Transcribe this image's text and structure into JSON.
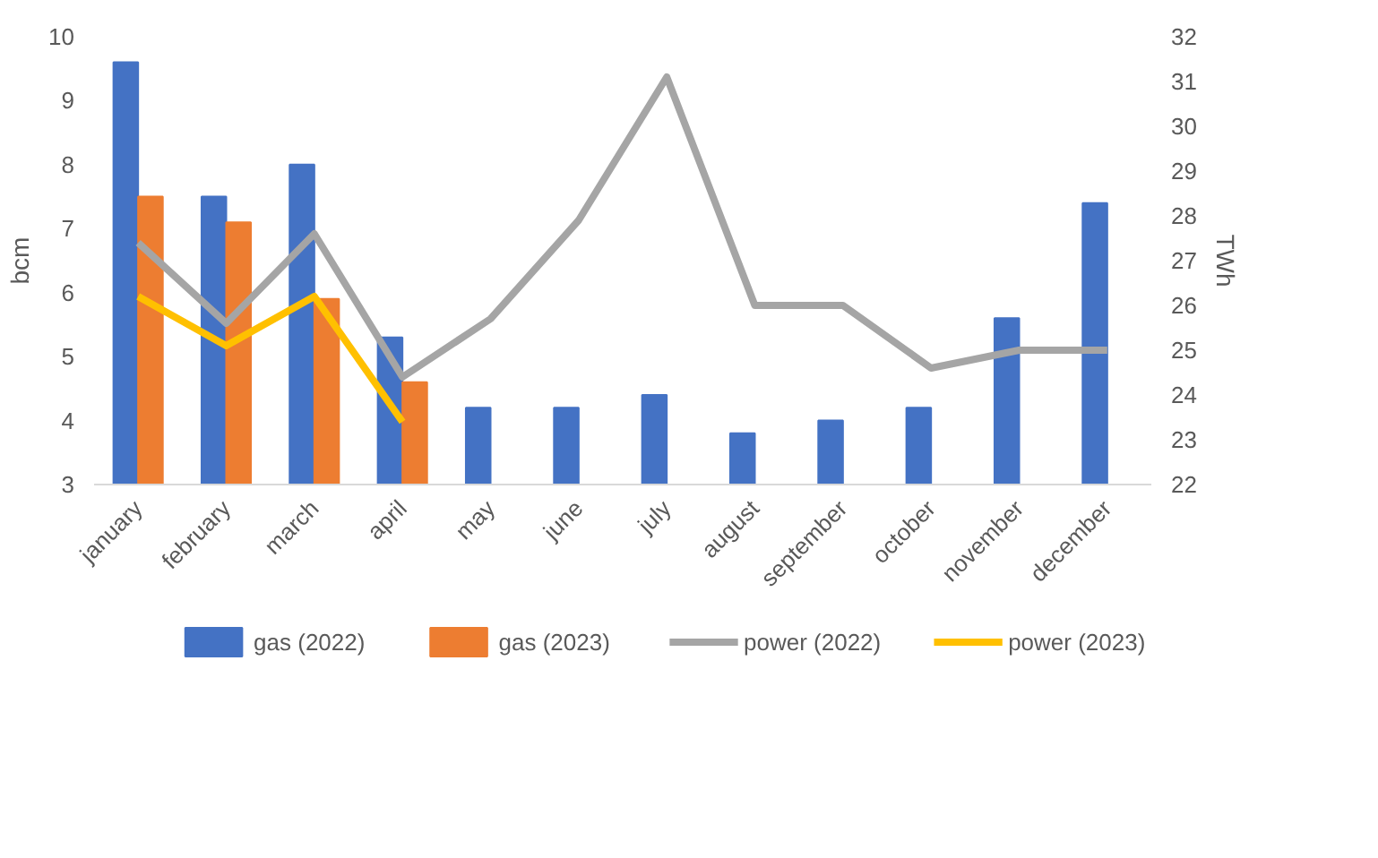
{
  "chart_data": {
    "type": "bar",
    "categories": [
      "january",
      "february",
      "march",
      "april",
      "may",
      "june",
      "july",
      "august",
      "september",
      "october",
      "november",
      "december"
    ],
    "ylabel": "bcm",
    "y2label": "TWh",
    "ylim": [
      3,
      10
    ],
    "yticks": [
      3,
      4,
      5,
      6,
      7,
      8,
      9,
      10
    ],
    "y2lim": [
      22,
      32
    ],
    "y2ticks": [
      22,
      23,
      24,
      25,
      26,
      27,
      28,
      29,
      30,
      31,
      32
    ],
    "grid": false,
    "legend": "bottom",
    "series": [
      {
        "name": "gas (2022)",
        "color": "#4472c4",
        "values": [
          9.6,
          7.5,
          8.0,
          5.3,
          4.2,
          4.2,
          4.4,
          3.8,
          4.0,
          4.2,
          5.6,
          7.4
        ]
      },
      {
        "name": "gas (2023)",
        "color": "#ed7d31",
        "values": [
          7.5,
          7.1,
          5.9,
          4.6,
          null,
          null,
          null,
          null,
          null,
          null,
          null,
          null
        ]
      },
      {
        "name": "power (2022)",
        "type": "line",
        "axis": "y2",
        "color": "#a5a5a5",
        "values": [
          27.4,
          25.6,
          27.6,
          24.4,
          25.7,
          27.9,
          31.1,
          26.0,
          26.0,
          24.6,
          25.0,
          25.0
        ]
      },
      {
        "name": "power (2023)",
        "type": "line",
        "axis": "y2",
        "color": "#ffc000",
        "values": [
          26.2,
          25.1,
          26.2,
          23.4,
          null,
          null,
          null,
          null,
          null,
          null,
          null,
          null
        ]
      }
    ]
  }
}
